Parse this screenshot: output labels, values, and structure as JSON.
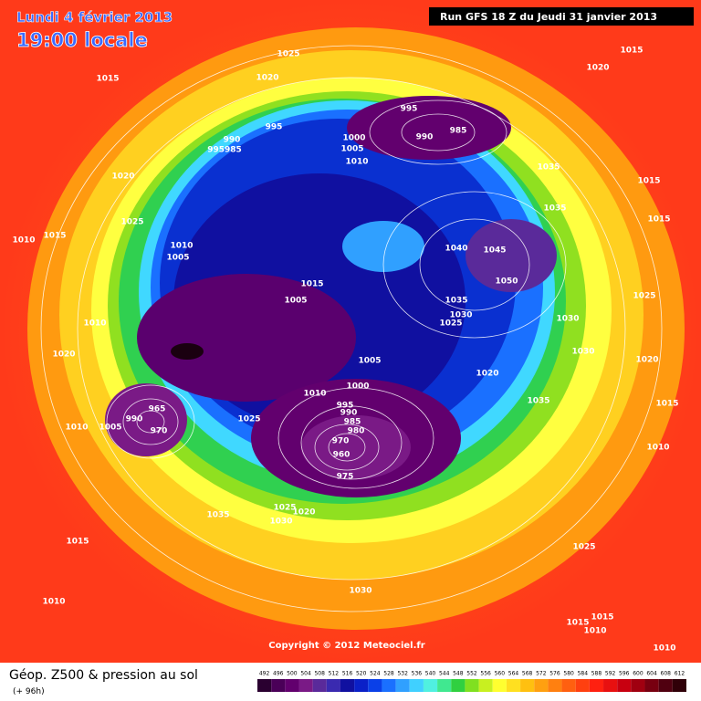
{
  "header": {
    "date": "Lundi 4 février 2013",
    "time": "19:00 locale",
    "run": "Run GFS 18 Z du Jeudi 31 janvier 2013"
  },
  "copyright": "Copyright © 2012 Meteociel.fr",
  "legend": {
    "title": "Géop. Z500 & pression au sol",
    "lead": "(+ 96h)",
    "scale": [
      492,
      496,
      500,
      504,
      508,
      512,
      516,
      520,
      524,
      528,
      532,
      536,
      540,
      544,
      548,
      552,
      556,
      560,
      564,
      568,
      572,
      576,
      580,
      584,
      588,
      592,
      596,
      600,
      604,
      608,
      612
    ],
    "colors": [
      "#2a0030",
      "#4a0058",
      "#62006e",
      "#7a1a86",
      "#5a2a9a",
      "#3a2ab0",
      "#1010a0",
      "#0a20c8",
      "#0a40e8",
      "#1a70ff",
      "#30a0ff",
      "#40d0ff",
      "#50f0e0",
      "#40e890",
      "#30d040",
      "#80e020",
      "#c8f020",
      "#ffff30",
      "#ffe020",
      "#ffc010",
      "#ffa010",
      "#ff8010",
      "#ff6010",
      "#ff4010",
      "#ff2010",
      "#e81010",
      "#c80010",
      "#a00010",
      "#780010",
      "#500010",
      "#300008"
    ]
  },
  "isobar_labels": [
    "1015",
    "1025",
    "1020",
    "1020",
    "1015",
    "995",
    "990",
    "995985",
    "995",
    "990",
    "985",
    "1000",
    "1005",
    "1010",
    "1035",
    "1015",
    "1020",
    "1025",
    "1035",
    "1015",
    "1010",
    "1015",
    "1010",
    "1005",
    "1040",
    "1045",
    "1050",
    "1015",
    "1005",
    "1035",
    "1030",
    "1025",
    "1025",
    "1030",
    "1010",
    "1020",
    "1030",
    "1020",
    "1005",
    "1000",
    "1010",
    "1020",
    "995",
    "990",
    "985",
    "980",
    "1035",
    "1015",
    "965",
    "990",
    "970",
    "1025",
    "1010",
    "1005",
    "1010",
    "970",
    "960",
    "975",
    "1025",
    "1020",
    "1030",
    "1035",
    "1015",
    "1025",
    "1010",
    "1030",
    "1015",
    "1015",
    "1010",
    "1010"
  ]
}
